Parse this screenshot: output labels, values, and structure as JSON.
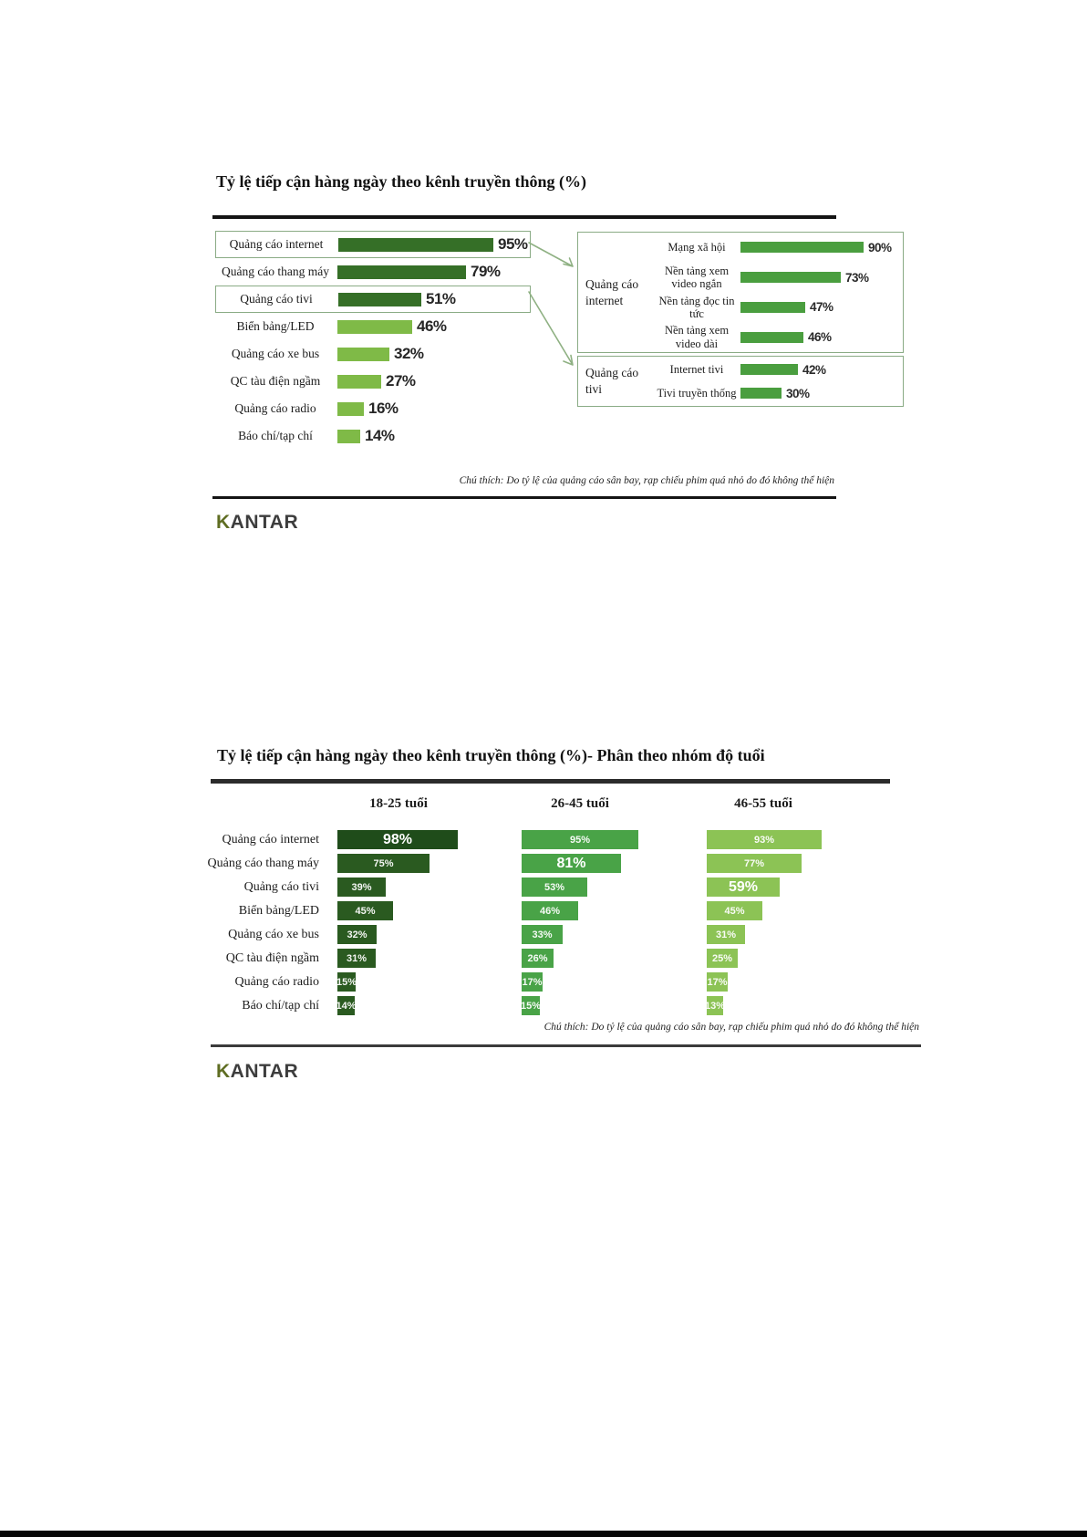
{
  "page": {
    "background": "#ffffff",
    "logo": {
      "k": "K",
      "rest": "ANTAR"
    }
  },
  "colors": {
    "dark_green": "#356f27",
    "light_green": "#7fba47",
    "mid_green": "#4a9e3f",
    "box_border": "#8aab85",
    "arrow": "#8fb183",
    "age_col1": "#2a5a20",
    "age_col1_top": "#1f4c1a",
    "age_col2": "#49a347",
    "age_col3": "#8cc355",
    "line_dark": "#141414",
    "logo_k": "#5f6d22",
    "logo_text": "#3d3d3d"
  },
  "chart1": {
    "title": "Tỷ lệ tiếp cận hàng ngày theo kênh truyền thông (%)",
    "bars": [
      {
        "label": "Quảng cáo internet",
        "value": "95%",
        "pct": 95,
        "tone": "dark",
        "boxed": true
      },
      {
        "label": "Quảng cáo thang máy",
        "value": "79%",
        "pct": 79,
        "tone": "dark",
        "boxed": false
      },
      {
        "label": "Quảng cáo tivi",
        "value": "51%",
        "pct": 51,
        "tone": "dark",
        "boxed": true
      },
      {
        "label": "Biển bảng/LED",
        "value": "46%",
        "pct": 46,
        "tone": "light",
        "boxed": false
      },
      {
        "label": "Quảng cáo xe bus",
        "value": "32%",
        "pct": 32,
        "tone": "light",
        "boxed": false
      },
      {
        "label": "QC tàu điện ngầm",
        "value": "27%",
        "pct": 27,
        "tone": "light",
        "boxed": false
      },
      {
        "label": "Quảng cáo radio",
        "value": "16%",
        "pct": 16,
        "tone": "light",
        "boxed": false
      },
      {
        "label": "Báo chí/tạp chí",
        "value": "14%",
        "pct": 14,
        "tone": "light",
        "boxed": false
      }
    ],
    "groups": [
      {
        "label": "Quảng cáo internet",
        "items": [
          {
            "label": "Mạng xã hội",
            "value": "90%",
            "pct": 90
          },
          {
            "label": "Nền tảng xem video ngắn",
            "value": "73%",
            "pct": 73
          },
          {
            "label": "Nền tảng đọc tin tức",
            "value": "47%",
            "pct": 47
          },
          {
            "label": "Nền tảng xem video dài",
            "value": "46%",
            "pct": 46
          }
        ]
      },
      {
        "label": "Quảng cáo tivi",
        "items": [
          {
            "label": "Internet tivi",
            "value": "42%",
            "pct": 42
          },
          {
            "label": "Tivi truyền thống",
            "value": "30%",
            "pct": 30
          }
        ]
      }
    ],
    "footnote": "Chú thích: Do tỷ lệ của quảng cáo sân bay, rạp chiếu phim quá nhỏ do đó không thể hiện"
  },
  "chart2": {
    "title": "Tỷ lệ tiếp cận hàng ngày theo kênh truyền thông (%)- Phân theo nhóm độ tuổi",
    "columns": [
      "18-25 tuổi",
      "26-45 tuổi",
      "46-55 tuổi"
    ],
    "rows": [
      {
        "label": "Quảng cáo internet",
        "cells": [
          {
            "value": "98%",
            "pct": 98,
            "big": true
          },
          {
            "value": "95%",
            "pct": 95,
            "big": false
          },
          {
            "value": "93%",
            "pct": 93,
            "big": false
          }
        ]
      },
      {
        "label": "Quảng cáo thang máy",
        "cells": [
          {
            "value": "75%",
            "pct": 75,
            "big": false
          },
          {
            "value": "81%",
            "pct": 81,
            "big": true
          },
          {
            "value": "77%",
            "pct": 77,
            "big": false
          }
        ]
      },
      {
        "label": "Quảng cáo tivi",
        "cells": [
          {
            "value": "39%",
            "pct": 39,
            "big": false
          },
          {
            "value": "53%",
            "pct": 53,
            "big": false
          },
          {
            "value": "59%",
            "pct": 59,
            "big": true
          }
        ]
      },
      {
        "label": "Biển bảng/LED",
        "cells": [
          {
            "value": "45%",
            "pct": 45,
            "big": false
          },
          {
            "value": "46%",
            "pct": 46,
            "big": false
          },
          {
            "value": "45%",
            "pct": 45,
            "big": false
          }
        ]
      },
      {
        "label": "Quảng cáo xe bus",
        "cells": [
          {
            "value": "32%",
            "pct": 32,
            "big": false
          },
          {
            "value": "33%",
            "pct": 33,
            "big": false
          },
          {
            "value": "31%",
            "pct": 31,
            "big": false
          }
        ]
      },
      {
        "label": "QC tàu điện ngầm",
        "cells": [
          {
            "value": "31%",
            "pct": 31,
            "big": false
          },
          {
            "value": "26%",
            "pct": 26,
            "big": false
          },
          {
            "value": "25%",
            "pct": 25,
            "big": false
          }
        ]
      },
      {
        "label": "Quảng cáo radio",
        "cells": [
          {
            "value": "15%",
            "pct": 15,
            "big": false
          },
          {
            "value": "17%",
            "pct": 17,
            "big": false
          },
          {
            "value": "17%",
            "pct": 17,
            "big": false
          }
        ]
      },
      {
        "label": "Báo chí/tạp chí",
        "cells": [
          {
            "value": "14%",
            "pct": 14,
            "big": false
          },
          {
            "value": "15%",
            "pct": 15,
            "big": false
          },
          {
            "value": "13%",
            "pct": 13,
            "big": false
          }
        ]
      }
    ],
    "footnote": "Chú thích: Do tỷ lệ của quảng cáo sân bay, rạp chiếu phim quá nhỏ do đó không thể hiện"
  },
  "chart_data": [
    {
      "type": "bar",
      "orientation": "horizontal",
      "title": "Tỷ lệ tiếp cận hàng ngày theo kênh truyền thông (%)",
      "categories": [
        "Quảng cáo internet",
        "Quảng cáo thang máy",
        "Quảng cáo tivi",
        "Biển bảng/LED",
        "Quảng cáo xe bus",
        "QC tàu điện ngầm",
        "Quảng cáo radio",
        "Báo chí/tạp chí"
      ],
      "values": [
        95,
        79,
        51,
        46,
        32,
        27,
        16,
        14
      ],
      "xlabel": "",
      "ylabel": "",
      "xlim": [
        0,
        100
      ],
      "grid": false,
      "annotation": "Chú thích: Do tỷ lệ của quảng cáo sân bay, rạp chiếu phim quá nhỏ do đó không thể hiện"
    },
    {
      "type": "bar",
      "orientation": "horizontal",
      "title": "Quảng cáo internet",
      "categories": [
        "Mạng xã hội",
        "Nền tảng xem video ngắn",
        "Nền tảng đọc tin tức",
        "Nền tảng xem video dài"
      ],
      "values": [
        90,
        73,
        47,
        46
      ],
      "xlim": [
        0,
        100
      ],
      "grid": false
    },
    {
      "type": "bar",
      "orientation": "horizontal",
      "title": "Quảng cáo tivi",
      "categories": [
        "Internet tivi",
        "Tivi truyền thống"
      ],
      "values": [
        42,
        30
      ],
      "xlim": [
        0,
        100
      ],
      "grid": false
    },
    {
      "type": "bar",
      "orientation": "horizontal",
      "title": "Tỷ lệ tiếp cận hàng ngày theo kênh truyền thông (%)- Phân theo nhóm độ tuổi",
      "categories": [
        "Quảng cáo internet",
        "Quảng cáo thang máy",
        "Quảng cáo tivi",
        "Biển bảng/LED",
        "Quảng cáo xe bus",
        "QC tàu điện ngầm",
        "Quảng cáo radio",
        "Báo chí/tạp chí"
      ],
      "series": [
        {
          "name": "18-25 tuổi",
          "values": [
            98,
            75,
            39,
            45,
            32,
            31,
            15,
            14
          ]
        },
        {
          "name": "26-45 tuổi",
          "values": [
            95,
            81,
            53,
            46,
            33,
            26,
            17,
            15
          ]
        },
        {
          "name": "46-55 tuổi",
          "values": [
            93,
            77,
            59,
            45,
            31,
            25,
            17,
            13
          ]
        }
      ],
      "xlim": [
        0,
        100
      ],
      "grid": false,
      "legend_position": "top",
      "annotation": "Chú thích: Do tỷ lệ của quảng cáo sân bay, rạp chiếu phim quá nhỏ do đó không thể hiện"
    }
  ]
}
